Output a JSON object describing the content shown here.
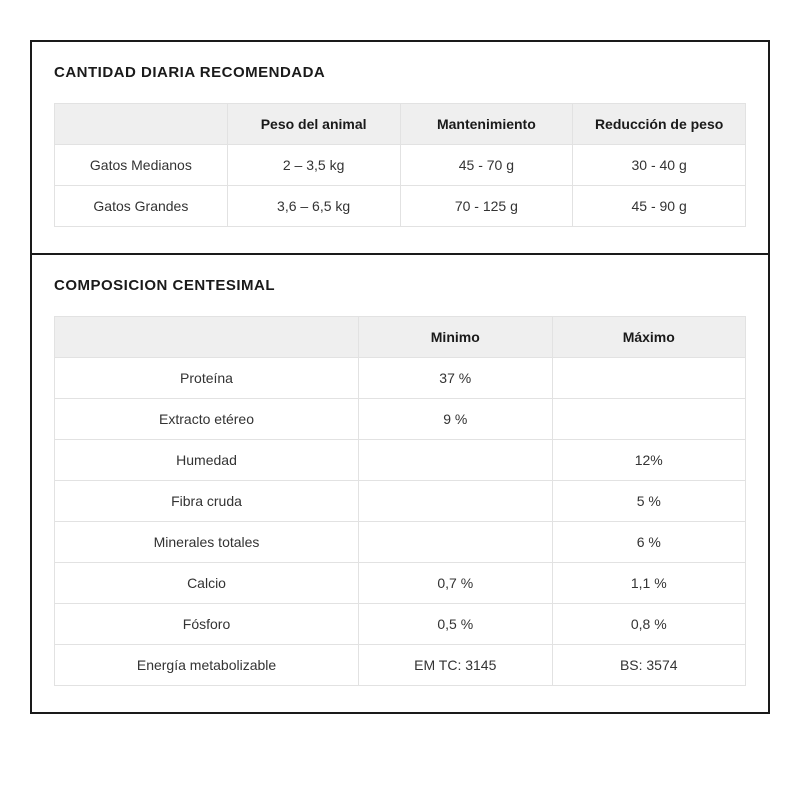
{
  "panel": {
    "border_color": "#1a1a1a",
    "border_width": 2,
    "background": "#ffffff"
  },
  "typography": {
    "title_fontsize": 15,
    "title_weight": 600,
    "cell_fontsize": 14,
    "header_weight": 700,
    "text_color": "#1a1a1a",
    "cell_text_color": "#333333"
  },
  "table_style": {
    "header_bg": "#efefef",
    "cell_bg": "#ffffff",
    "border_color": "#e2e2e2",
    "cell_padding": 12
  },
  "daily": {
    "title": "CANTIDAD DIARIA RECOMENDADA",
    "columns": [
      "",
      "Peso del animal",
      "Mantenimiento",
      "Reducción de peso"
    ],
    "rows": [
      {
        "label": "Gatos Medianos",
        "peso": "2 – 3,5 kg",
        "mant": "45 - 70 g",
        "red": "30 - 40 g"
      },
      {
        "label": "Gatos Grandes",
        "peso": "3,6 – 6,5 kg",
        "mant": "70 - 125 g",
        "red": "45 - 90 g"
      }
    ]
  },
  "composition": {
    "title": "COMPOSICION CENTESIMAL",
    "columns": [
      "",
      "Minimo",
      "Máximo"
    ],
    "rows": [
      {
        "label": "Proteína",
        "min": "37 %",
        "max": ""
      },
      {
        "label": "Extracto etéreo",
        "min": "9 %",
        "max": ""
      },
      {
        "label": "Humedad",
        "min": "",
        "max": "12%"
      },
      {
        "label": "Fibra cruda",
        "min": "",
        "max": "5 %"
      },
      {
        "label": "Minerales totales",
        "min": "",
        "max": "6 %"
      },
      {
        "label": "Calcio",
        "min": "0,7 %",
        "max": "1,1 %"
      },
      {
        "label": "Fósforo",
        "min": "0,5 %",
        "max": "0,8 %"
      },
      {
        "label": "Energía metabolizable",
        "min": "EM TC: 3145",
        "max": "BS: 3574"
      }
    ]
  }
}
